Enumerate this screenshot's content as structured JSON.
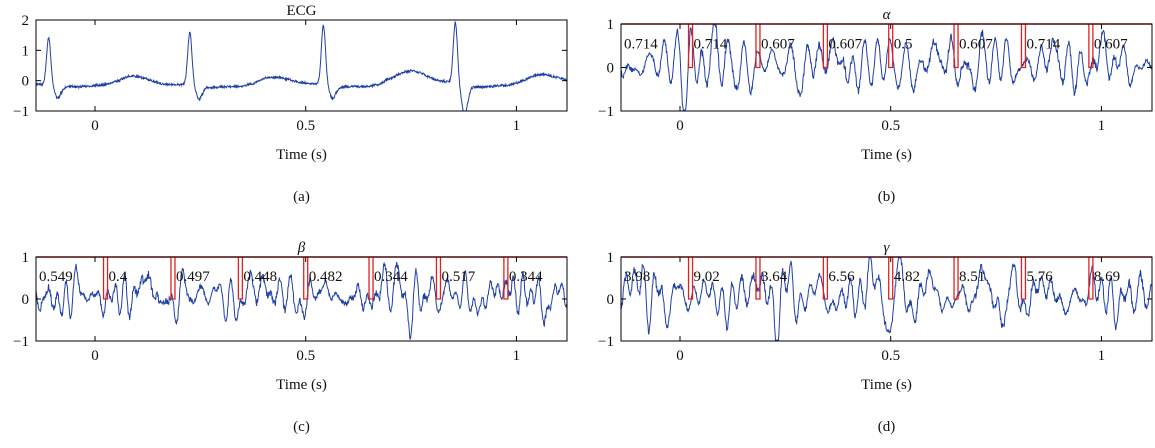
{
  "chart_data": [
    {
      "type": "line",
      "panel_label": "(a)",
      "title": "ECG",
      "title_italic": false,
      "xlabel": "Time (s)",
      "ylabel": "",
      "xlim": [
        -0.14,
        1.12
      ],
      "ylim": [
        -1,
        2
      ],
      "xticks": [
        0,
        0.5,
        1
      ],
      "xtick_labels": [
        "0",
        "0.5",
        "1"
      ],
      "yticks": [
        -1,
        0,
        1,
        2
      ],
      "ytick_labels": [
        "−1",
        "0",
        "1",
        "2"
      ],
      "line_color": "#1f3fa3",
      "beats": [
        {
          "r_time": -0.11,
          "q_min": -0.45
        },
        {
          "r_time": 0.225,
          "r_peak": 1.7,
          "q_min": -0.5
        },
        {
          "r_time": 0.542,
          "r_peak": 1.95,
          "q_min": -0.45
        },
        {
          "r_time": 0.855,
          "r_peak": 2.0,
          "q_min": -1.0
        }
      ]
    },
    {
      "type": "line",
      "panel_label": "(b)",
      "title": "α",
      "title_italic": true,
      "xlabel": "Time (s)",
      "ylabel": "",
      "xlim": [
        -0.14,
        1.12
      ],
      "ylim": [
        -1,
        1
      ],
      "xticks": [
        0,
        0.5,
        1
      ],
      "xtick_labels": [
        "0",
        "0.5",
        "1"
      ],
      "yticks": [
        -1,
        0,
        1
      ],
      "ytick_labels": [
        "−1",
        "0",
        "1"
      ],
      "line_color": "#1f3fa3",
      "segment_color": "#e02020",
      "boundaries": [
        0.025,
        0.185,
        0.345,
        0.5,
        0.655,
        0.815,
        0.975
      ],
      "values": [
        "0.714",
        "0.714",
        "0.607",
        "0.607",
        "0.5",
        "0.607",
        "0.714",
        "0.607"
      ]
    },
    {
      "type": "line",
      "panel_label": "(c)",
      "title": "β",
      "title_italic": true,
      "xlabel": "Time (s)",
      "ylabel": "",
      "xlim": [
        -0.14,
        1.12
      ],
      "ylim": [
        -1,
        1
      ],
      "xticks": [
        0,
        0.5,
        1
      ],
      "xtick_labels": [
        "0",
        "0.5",
        "1"
      ],
      "yticks": [
        -1,
        0,
        1
      ],
      "ytick_labels": [
        "−1",
        "0",
        "1"
      ],
      "line_color": "#1f3fa3",
      "segment_color": "#e02020",
      "boundaries": [
        0.025,
        0.185,
        0.345,
        0.5,
        0.655,
        0.815,
        0.975
      ],
      "values": [
        "0.549",
        "0.4",
        "0.497",
        "0.448",
        "0.482",
        "0.344",
        "0.517",
        "0.344"
      ]
    },
    {
      "type": "line",
      "panel_label": "(d)",
      "title": "γ",
      "title_italic": true,
      "xlabel": "Time (s)",
      "ylabel": "",
      "xlim": [
        -0.14,
        1.12
      ],
      "ylim": [
        -1,
        1
      ],
      "xticks": [
        0,
        0.5,
        1
      ],
      "xtick_labels": [
        "0",
        "0.5",
        "1"
      ],
      "yticks": [
        -1,
        0,
        1
      ],
      "ytick_labels": [
        "−1",
        "0",
        "1"
      ],
      "line_color": "#1f3fa3",
      "segment_color": "#e02020",
      "boundaries": [
        0.025,
        0.185,
        0.345,
        0.5,
        0.655,
        0.815,
        0.975
      ],
      "values": [
        "3.98",
        "9.02",
        "3.64",
        "6.56",
        "4.82",
        "8.51",
        "5.76",
        "8.69"
      ]
    }
  ]
}
